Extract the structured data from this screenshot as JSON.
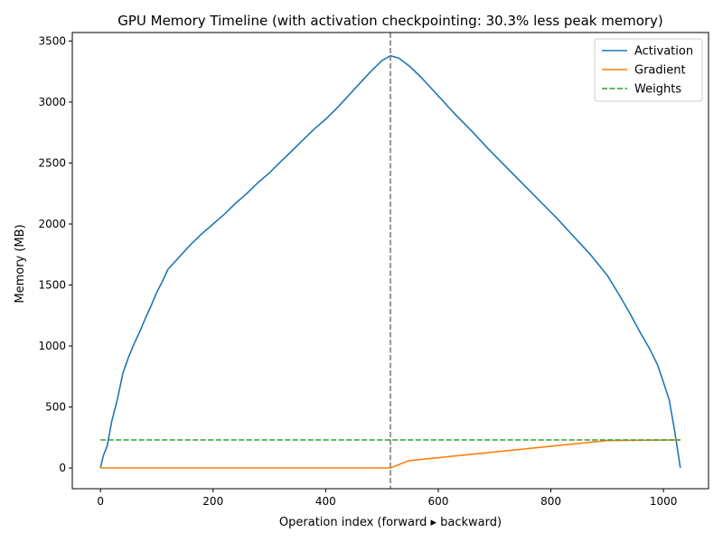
{
  "chart_data": {
    "type": "line",
    "title": "GPU Memory Timeline (with activation checkpointing: 30.3% less peak memory)",
    "xlabel": "Operation index (forward ▸ backward)",
    "ylabel": "Memory (MB)",
    "xlim": [
      -50,
      1080
    ],
    "ylim": [
      -170,
      3570
    ],
    "xticks": [
      0,
      200,
      400,
      600,
      800,
      1000
    ],
    "yticks": [
      0,
      500,
      1000,
      1500,
      2000,
      2500,
      3000,
      3500
    ],
    "legend_position": "top-right",
    "grid": false,
    "vline": {
      "x": 515,
      "color": "#7f7f7f",
      "style": "dashed"
    },
    "series": [
      {
        "name": "Activation",
        "color": "#1f77b4",
        "style": "solid",
        "x": [
          0,
          5,
          12,
          20,
          30,
          40,
          50,
          60,
          70,
          80,
          90,
          100,
          110,
          120,
          140,
          160,
          180,
          200,
          220,
          240,
          260,
          280,
          300,
          320,
          340,
          360,
          380,
          400,
          420,
          440,
          460,
          480,
          500,
          515,
          530,
          550,
          570,
          600,
          630,
          660,
          690,
          720,
          750,
          780,
          810,
          840,
          870,
          900,
          920,
          940,
          960,
          975,
          990,
          1000,
          1010,
          1015,
          1020,
          1025,
          1030
        ],
        "values": [
          0,
          100,
          180,
          380,
          560,
          780,
          910,
          1020,
          1120,
          1230,
          1330,
          1440,
          1530,
          1630,
          1730,
          1830,
          1920,
          2000,
          2080,
          2170,
          2250,
          2340,
          2420,
          2510,
          2600,
          2690,
          2780,
          2860,
          2950,
          3050,
          3150,
          3250,
          3340,
          3380,
          3360,
          3290,
          3200,
          3050,
          2900,
          2760,
          2610,
          2470,
          2330,
          2190,
          2050,
          1900,
          1750,
          1580,
          1430,
          1270,
          1100,
          980,
          840,
          700,
          560,
          430,
          300,
          150,
          0
        ]
      },
      {
        "name": "Gradient",
        "color": "#ff7f0e",
        "style": "solid",
        "x": [
          0,
          515,
          548,
          900,
          1030
        ],
        "values": [
          0,
          0,
          60,
          225,
          230
        ]
      },
      {
        "name": "Weights",
        "color": "#2ca02c",
        "style": "dashed",
        "x": [
          0,
          1030
        ],
        "values": [
          230,
          230
        ]
      }
    ]
  }
}
